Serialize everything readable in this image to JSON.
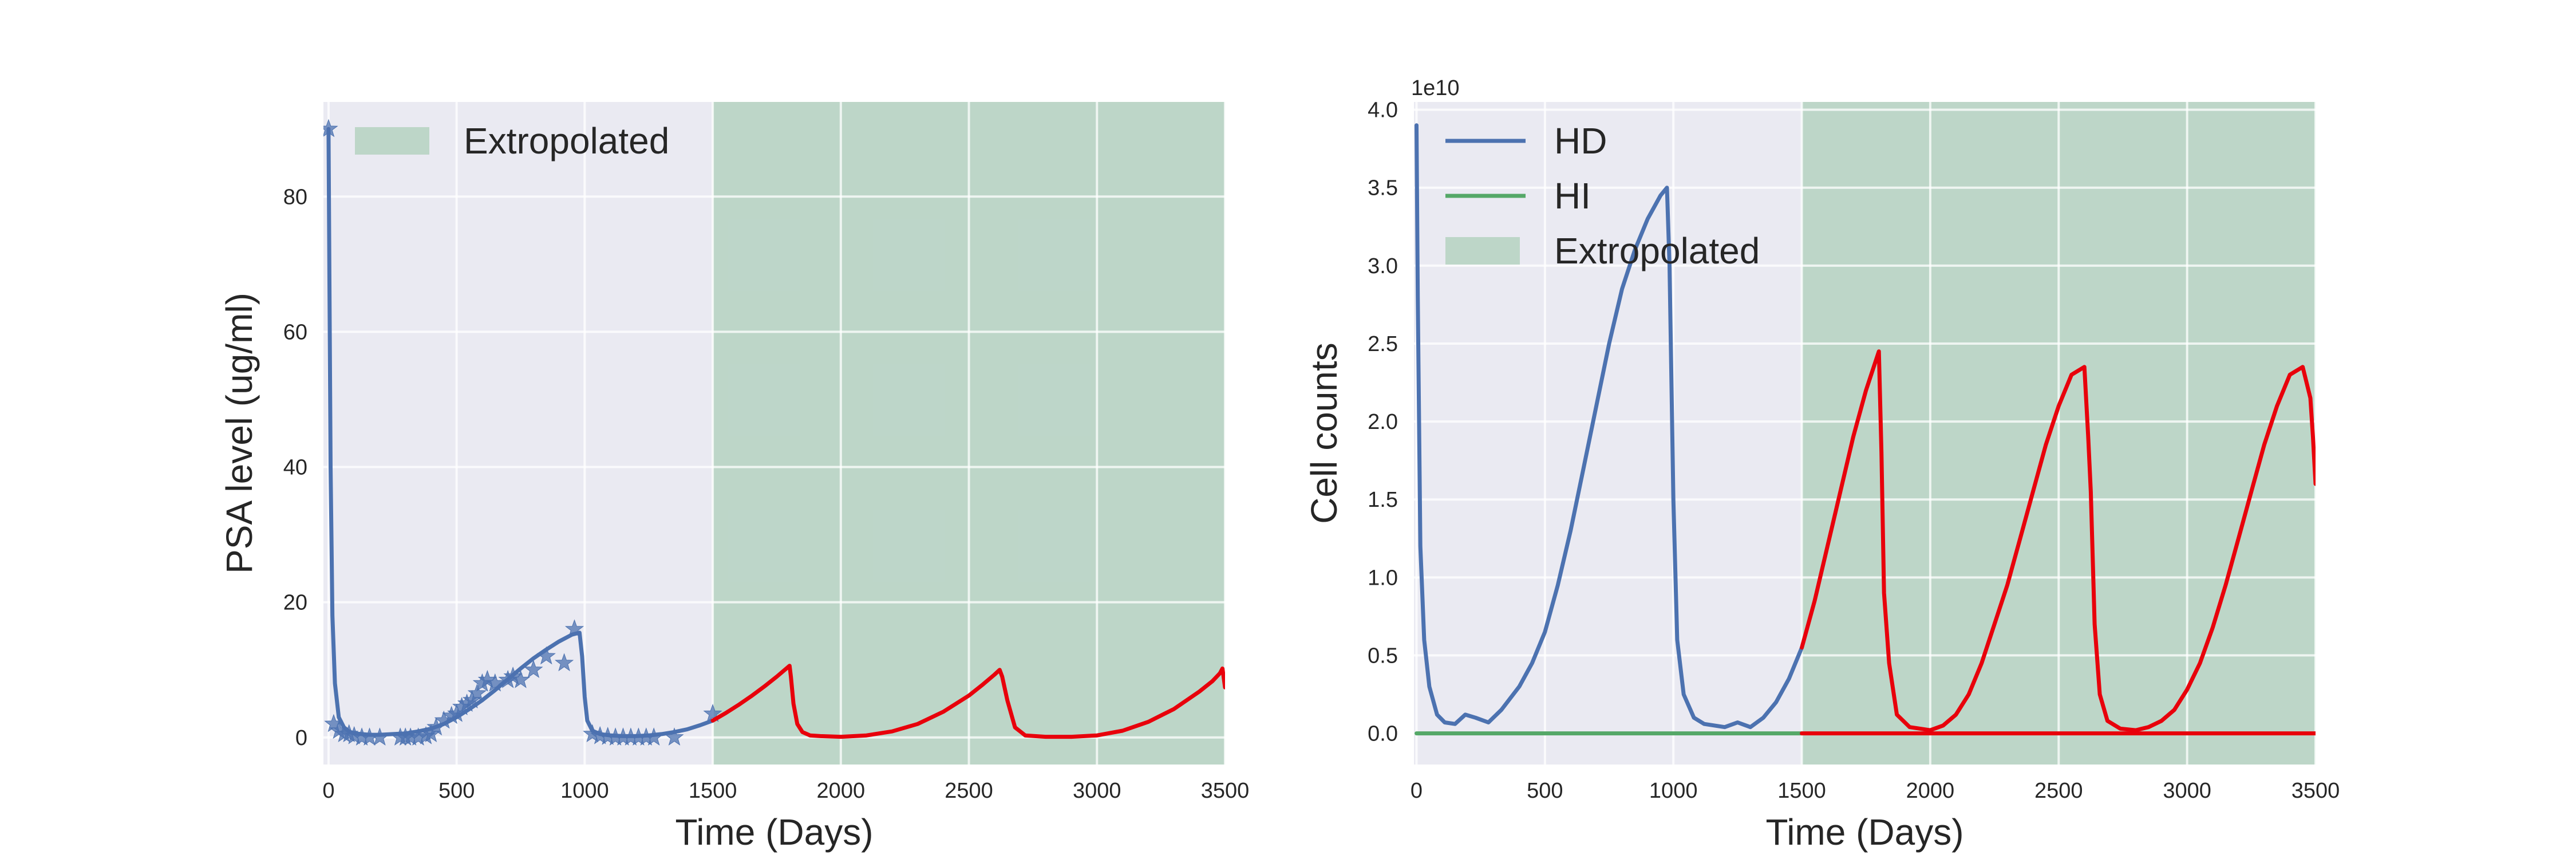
{
  "colors": {
    "background": "#eaeaf2",
    "grid": "#ffffff",
    "model_blue": "#4c72b0",
    "hi_green": "#55a868",
    "extrapolated_fill": "#55a868",
    "red": "#e8000b"
  },
  "chart_data": [
    {
      "type": "line",
      "title": "",
      "xlabel": "Time (Days)",
      "ylabel": "PSA level (ug/ml)",
      "xlim": [
        -20,
        3500
      ],
      "ylim": [
        -4,
        94
      ],
      "xticks": [
        0,
        500,
        1000,
        1500,
        2000,
        2500,
        3000,
        3500
      ],
      "yticks": [
        0,
        20,
        40,
        60,
        80
      ],
      "grid": true,
      "legend": {
        "placement": "top-left",
        "entries": [
          "Extropolated"
        ]
      },
      "shaded_region": {
        "label": "Extropolated",
        "x": [
          1500,
          3500
        ]
      },
      "series": [
        {
          "kind": "line",
          "style": "model_blue",
          "x": [
            0,
            3,
            8,
            15,
            25,
            40,
            60,
            80,
            100,
            130,
            160,
            200,
            250,
            300,
            350,
            400,
            450,
            500,
            550,
            600,
            650,
            700,
            750,
            800,
            850,
            900,
            950,
            980,
            990,
            1000,
            1010,
            1030,
            1060,
            1100,
            1150,
            1200,
            1250,
            1300,
            1350,
            1400,
            1450,
            1500
          ],
          "y": [
            90,
            70,
            40,
            18,
            8,
            3,
            1.5,
            0.9,
            0.6,
            0.5,
            0.4,
            0.4,
            0.5,
            0.6,
            0.9,
            1.3,
            2.0,
            3.0,
            4.2,
            5.5,
            7.0,
            8.6,
            10.2,
            11.7,
            13.0,
            14.2,
            15.2,
            15.5,
            12,
            6,
            2.5,
            1.0,
            0.5,
            0.3,
            0.2,
            0.2,
            0.3,
            0.5,
            0.8,
            1.2,
            1.8,
            2.5
          ]
        },
        {
          "kind": "scatter",
          "style": "model_blue",
          "x": [
            0,
            20,
            40,
            60,
            80,
            100,
            130,
            160,
            200,
            280,
            300,
            320,
            350,
            380,
            400,
            420,
            450,
            480,
            500,
            520,
            540,
            560,
            580,
            600,
            620,
            650,
            700,
            720,
            750,
            800,
            850,
            920,
            960,
            1030,
            1060,
            1090,
            1120,
            1150,
            1180,
            1210,
            1240,
            1270,
            1350,
            1500
          ],
          "y": [
            90,
            2,
            1,
            0.5,
            0.5,
            0.2,
            0,
            0,
            0,
            0,
            0,
            0,
            0,
            0.2,
            0.5,
            1.5,
            2.5,
            3.2,
            3.5,
            4.5,
            5,
            5.5,
            6.5,
            8,
            8.5,
            8,
            8.5,
            9,
            8.5,
            10,
            12,
            11,
            16,
            0.5,
            0.2,
            0.1,
            0,
            0,
            0,
            0,
            0,
            0,
            0,
            3.5
          ]
        },
        {
          "kind": "line",
          "style": "red",
          "x": [
            1500,
            1550,
            1600,
            1650,
            1700,
            1750,
            1800,
            1805,
            1815,
            1830,
            1850,
            1880,
            1920,
            2000,
            2100,
            2200,
            2300,
            2400,
            2500,
            2550,
            2600,
            2620,
            2630,
            2650,
            2680,
            2720,
            2800,
            2900,
            3000,
            3100,
            3200,
            3300,
            3400,
            3450,
            3480,
            3490,
            3500
          ],
          "y": [
            2.5,
            3.6,
            4.8,
            6.1,
            7.5,
            9.0,
            10.6,
            9,
            5,
            2,
            0.8,
            0.3,
            0.2,
            0.1,
            0.3,
            0.9,
            2.0,
            3.8,
            6.2,
            7.7,
            9.3,
            10.0,
            9,
            5.5,
            1.5,
            0.3,
            0.1,
            0.1,
            0.3,
            1.0,
            2.3,
            4.2,
            6.8,
            8.3,
            9.5,
            10.2,
            7.4
          ]
        }
      ]
    },
    {
      "type": "line",
      "title": "",
      "xlabel": "Time (Days)",
      "ylabel": "Cell counts",
      "y_offset_text": "1e10",
      "xlim": [
        -10,
        3500
      ],
      "ylim": [
        -0.2,
        4.05
      ],
      "xticks": [
        0,
        500,
        1000,
        1500,
        2000,
        2500,
        3000,
        3500
      ],
      "yticks": [
        0.0,
        0.5,
        1.0,
        1.5,
        2.0,
        2.5,
        3.0,
        3.5,
        4.0
      ],
      "ytick_labels": [
        "0.0",
        "0.5",
        "1.0",
        "1.5",
        "2.0",
        "2.5",
        "3.0",
        "3.5",
        "4.0"
      ],
      "grid": true,
      "legend": {
        "placement": "top-left",
        "entries": [
          "HD",
          "HI",
          "Extropolated"
        ]
      },
      "shaded_region": {
        "label": "Extropolated",
        "x": [
          1500,
          3500
        ]
      },
      "series": [
        {
          "name": "HD",
          "kind": "line",
          "style": "model_blue",
          "x": [
            0,
            5,
            15,
            30,
            50,
            80,
            110,
            150,
            190,
            230,
            280,
            330,
            400,
            450,
            500,
            550,
            600,
            650,
            700,
            750,
            800,
            850,
            900,
            950,
            975,
            985,
            1000,
            1015,
            1040,
            1080,
            1120,
            1160,
            1200,
            1250,
            1300,
            1350,
            1400,
            1450,
            1500
          ],
          "y": [
            3.9,
            2.8,
            1.2,
            0.6,
            0.3,
            0.12,
            0.07,
            0.06,
            0.12,
            0.1,
            0.07,
            0.15,
            0.3,
            0.45,
            0.65,
            0.95,
            1.3,
            1.7,
            2.1,
            2.5,
            2.85,
            3.1,
            3.3,
            3.45,
            3.5,
            3.0,
            1.5,
            0.6,
            0.25,
            0.1,
            0.06,
            0.05,
            0.04,
            0.07,
            0.04,
            0.1,
            0.2,
            0.35,
            0.55
          ]
        },
        {
          "name": "HI",
          "kind": "line",
          "style": "hi_green",
          "x": [
            0,
            1500
          ],
          "y": [
            0,
            0
          ]
        },
        {
          "kind": "line",
          "style": "red",
          "x": [
            1500,
            1550,
            1600,
            1650,
            1700,
            1750,
            1800,
            1810,
            1820,
            1840,
            1870,
            1920,
            2000,
            2050,
            2100,
            2150,
            2200,
            2250,
            2300,
            2350,
            2400,
            2450,
            2500,
            2550,
            2600,
            2615,
            2625,
            2640,
            2660,
            2690,
            2740,
            2800,
            2850,
            2900,
            2950,
            3000,
            3050,
            3100,
            3150,
            3200,
            3250,
            3300,
            3350,
            3400,
            3450,
            3480,
            3490,
            3500
          ],
          "y": [
            0.55,
            0.85,
            1.2,
            1.55,
            1.9,
            2.2,
            2.45,
            1.8,
            0.9,
            0.45,
            0.12,
            0.04,
            0.02,
            0.05,
            0.12,
            0.25,
            0.45,
            0.7,
            0.95,
            1.25,
            1.55,
            1.85,
            2.1,
            2.3,
            2.35,
            1.9,
            1.55,
            0.7,
            0.25,
            0.08,
            0.03,
            0.02,
            0.04,
            0.08,
            0.15,
            0.28,
            0.45,
            0.68,
            0.95,
            1.25,
            1.55,
            1.85,
            2.1,
            2.3,
            2.35,
            2.15,
            1.9,
            1.6
          ]
        },
        {
          "kind": "line",
          "style": "red",
          "x": [
            1500,
            3500
          ],
          "y": [
            0,
            0
          ]
        }
      ]
    }
  ]
}
